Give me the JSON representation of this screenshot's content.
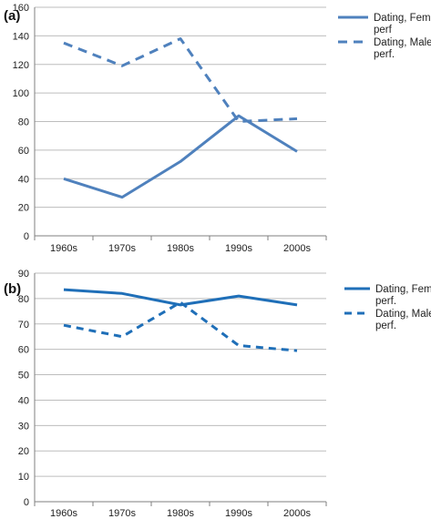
{
  "chart_data": [
    {
      "type": "line",
      "panel_label": "(a)",
      "categories": [
        "1960s",
        "1970s",
        "1980s",
        "1990s",
        "2000s"
      ],
      "ylim": [
        0,
        160
      ],
      "yticks": [
        0,
        20,
        40,
        60,
        80,
        100,
        120,
        140,
        160
      ],
      "grid": true,
      "legend_position": "top-right",
      "color": "#4f81bd",
      "series": [
        {
          "name": "Dating, Fem perf",
          "style": "solid",
          "values": [
            40,
            27,
            52,
            84,
            59
          ]
        },
        {
          "name": "Dating, Male perf.",
          "style": "dashed",
          "values": [
            135,
            119,
            138,
            80,
            82
          ]
        }
      ]
    },
    {
      "type": "line",
      "panel_label": "(b)",
      "categories": [
        "1960s",
        "1970s",
        "1980s",
        "1990s",
        "2000s"
      ],
      "ylim": [
        0,
        90
      ],
      "yticks": [
        0,
        10,
        20,
        30,
        40,
        50,
        60,
        70,
        80,
        90
      ],
      "grid": true,
      "legend_position": "top-right",
      "color": "#1f6fb8",
      "series": [
        {
          "name": "Dating, Fem perf.",
          "style": "solid",
          "values": [
            83.5,
            82,
            77.5,
            81,
            77.5
          ]
        },
        {
          "name": "Dating, Male perf.",
          "style": "dashed",
          "values": [
            69.5,
            65,
            78.5,
            61.5,
            59.5
          ]
        }
      ]
    }
  ]
}
